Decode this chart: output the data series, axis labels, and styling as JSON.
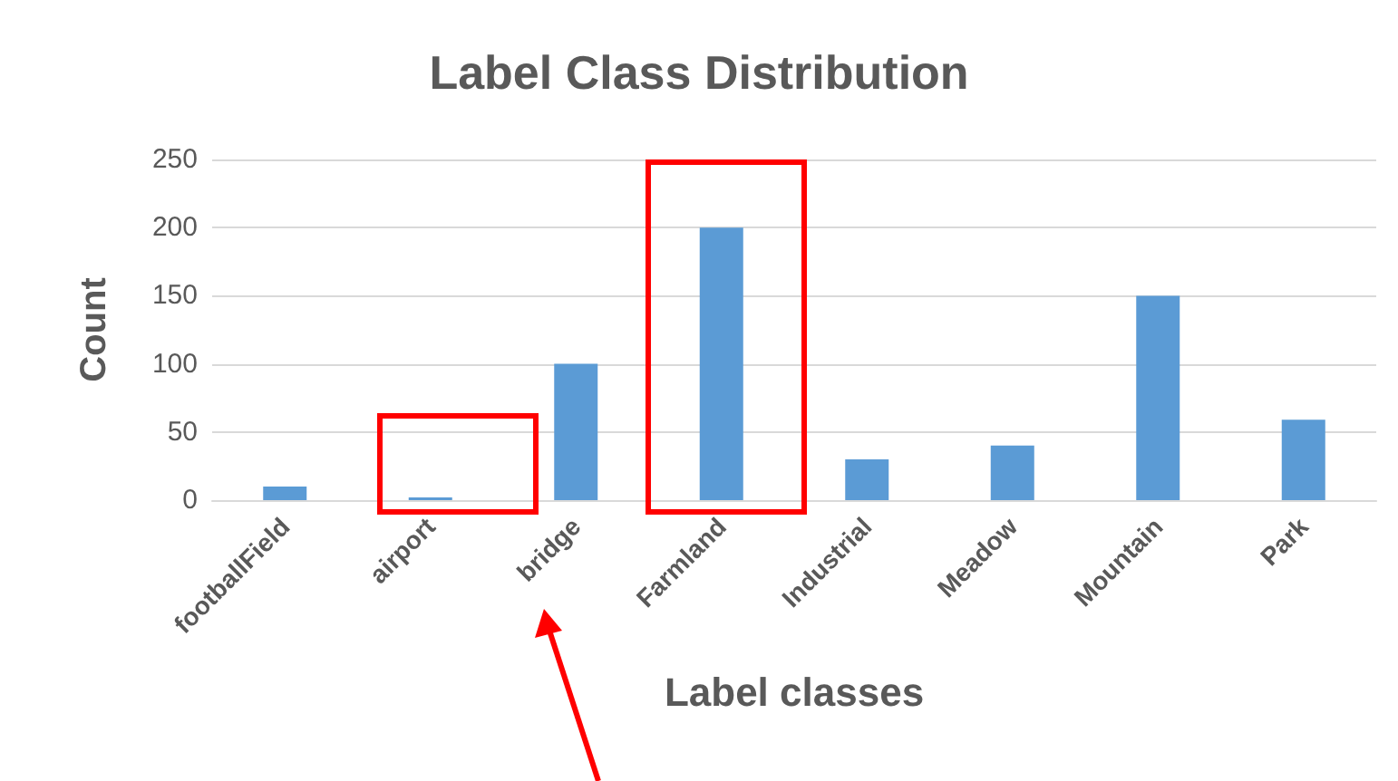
{
  "chart_data": {
    "type": "bar",
    "title": "Label Class Distribution",
    "xlabel": "Label classes",
    "ylabel": "Count",
    "categories": [
      "footballField",
      "airport",
      "bridge",
      "Farmland",
      "Industrial",
      "Meadow",
      "Mountain",
      "Park"
    ],
    "values": [
      10,
      2,
      100,
      200,
      30,
      40,
      150,
      59
    ],
    "color": "#5b9bd5",
    "ylim": [
      0,
      250
    ],
    "yticks": [
      0,
      50,
      100,
      150,
      200,
      250
    ],
    "grid": "y"
  }
}
